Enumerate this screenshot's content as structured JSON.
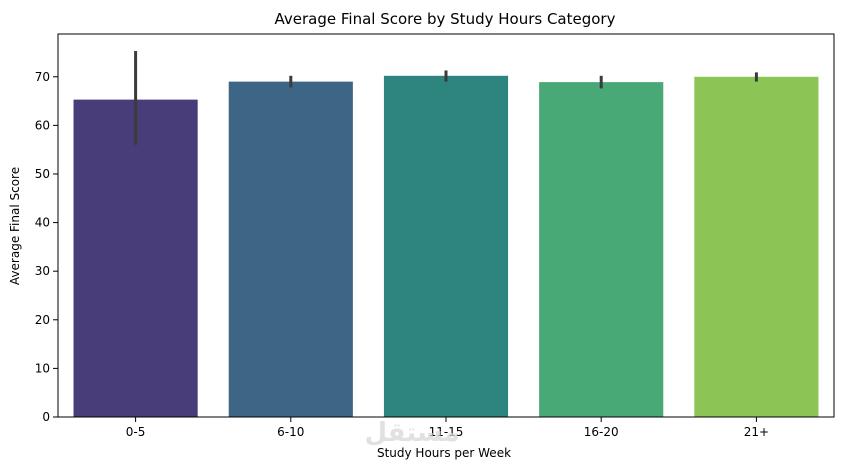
{
  "chart_data": {
    "type": "bar",
    "title": "Average Final Score by Study Hours Category",
    "xlabel": "Study Hours per Week",
    "ylabel": "Average Final Score",
    "categories": [
      "0-5",
      "6-10",
      "11-15",
      "16-20",
      "21+"
    ],
    "values": [
      65.3,
      69.0,
      70.2,
      68.9,
      70.0
    ],
    "error_bars": [
      {
        "low": 56.0,
        "high": 75.3
      },
      {
        "low": 67.8,
        "high": 70.2
      },
      {
        "low": 69.0,
        "high": 71.3
      },
      {
        "low": 67.6,
        "high": 70.2
      },
      {
        "low": 69.0,
        "high": 70.9
      }
    ],
    "colors": [
      "#483d78",
      "#3d6585",
      "#2e847e",
      "#48a977",
      "#8cc556"
    ],
    "ylim": [
      0,
      78.8
    ],
    "yticks": [
      0,
      10,
      20,
      30,
      40,
      50,
      60,
      70
    ],
    "grid": false,
    "legend": "none"
  },
  "watermark": "مستقل"
}
